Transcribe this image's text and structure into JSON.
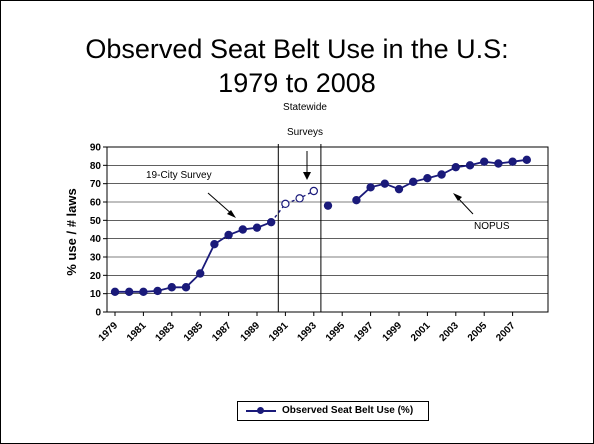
{
  "slide": {
    "title_line1": "Observed Seat Belt Use in the U.S:",
    "title_line2": "1979 to 2008"
  },
  "annotations": {
    "city_survey": "19-City Survey",
    "statewide_line1": "Statewide",
    "statewide_line2": "Surveys",
    "nopus": "NOPUS"
  },
  "colors": {
    "series": "#1a1a7a",
    "grid": "#000000",
    "plot_bg": "#ffffff"
  },
  "chart_data": {
    "type": "line",
    "title": "",
    "xlabel": "",
    "ylabel": "% use  / # laws",
    "xlim": [
      1979,
      2008
    ],
    "ylim": [
      0,
      90
    ],
    "y_ticks": [
      0,
      10,
      20,
      30,
      40,
      50,
      60,
      70,
      80,
      90
    ],
    "x_tick_labels": [
      "1979",
      "1981",
      "1983",
      "1985",
      "1987",
      "1989",
      "1991",
      "1993",
      "1995",
      "1997",
      "1999",
      "2001",
      "2003",
      "2005",
      "2007"
    ],
    "grid": true,
    "legend": "bottom",
    "series": [
      {
        "name": "Observed Seat Belt Use (%)",
        "x": [
          1979,
          1980,
          1981,
          1982,
          1983,
          1984,
          1985,
          1986,
          1987,
          1988,
          1989,
          1990,
          1991,
          1992,
          1993,
          1994,
          1996,
          1997,
          1998,
          1999,
          2000,
          2001,
          2002,
          2003,
          2004,
          2005,
          2006,
          2007,
          2008
        ],
        "y": [
          11,
          11,
          11,
          11.5,
          13.5,
          13.5,
          21,
          37,
          42,
          45,
          46,
          49,
          59,
          62,
          66,
          58,
          61,
          68,
          70,
          67,
          71,
          73,
          75,
          79,
          80,
          82,
          81,
          82,
          83
        ],
        "segments": [
          [
            1979,
            1990
          ],
          [
            1996,
            2008
          ]
        ],
        "hollow_x": [
          1991,
          1992,
          1993
        ],
        "dashed_segment": [
          1990,
          1993
        ]
      }
    ],
    "vertical_lines_x": [
      1990.5,
      1993.5
    ]
  }
}
